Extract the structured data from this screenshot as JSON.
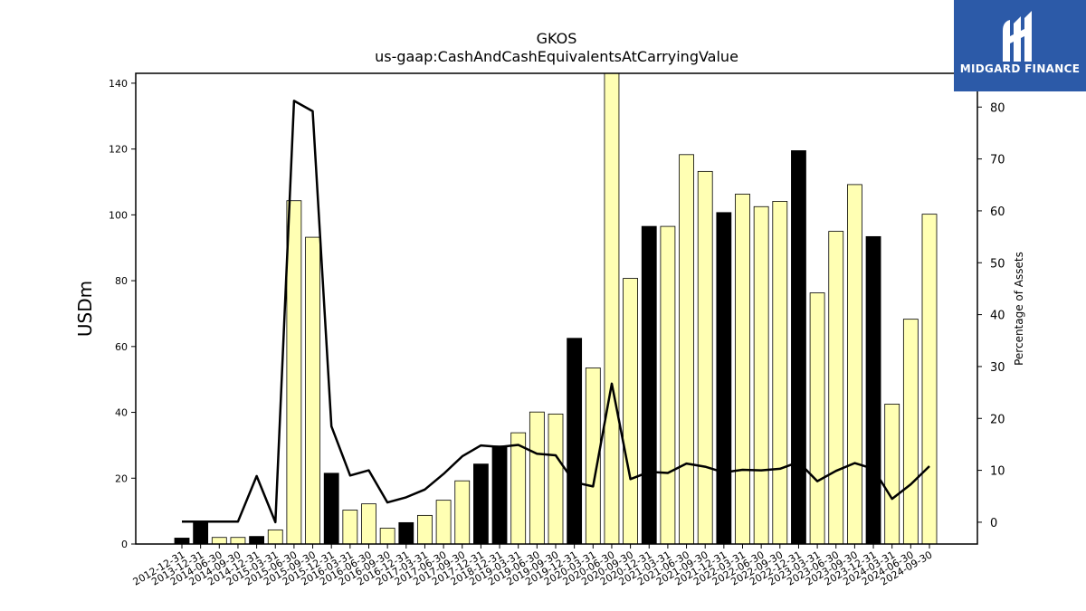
{
  "chart_data": {
    "type": "bar",
    "title": "GKOS",
    "subtitle": "us-gaap:CashAndCashEquivalentsAtCarryingValue",
    "ylabel": "USDm",
    "y2label": "Percentage of Assets",
    "ylim": [
      0,
      143
    ],
    "y2lim": [
      -4.2,
      86.5
    ],
    "yticks": [
      0,
      20,
      40,
      60,
      80,
      100,
      120,
      140
    ],
    "y2ticks": [
      0,
      10,
      20,
      30,
      40,
      50,
      60,
      70,
      80
    ],
    "categories": [
      "2012-12-31",
      "2013-12-31",
      "2014-06-30",
      "2014-09-30",
      "2014-12-31",
      "2015-03-31",
      "2015-06-30",
      "2015-09-30",
      "2015-12-31",
      "2016-03-31",
      "2016-06-30",
      "2016-09-30",
      "2016-12-31",
      "2017-03-31",
      "2017-06-30",
      "2017-09-30",
      "2017-12-31",
      "2018-12-31",
      "2019-03-31",
      "2019-06-30",
      "2019-09-30",
      "2019-12-31",
      "2020-03-31",
      "2020-06-30",
      "2020-09-30",
      "2020-12-31",
      "2021-03-31",
      "2021-06-30",
      "2021-09-30",
      "2021-12-31",
      "2022-03-31",
      "2022-06-30",
      "2022-09-30",
      "2022-12-31",
      "2023-03-31",
      "2023-06-30",
      "2023-09-30",
      "2023-12-31",
      "2024-03-31",
      "2024-06-30",
      "2024-09-30"
    ],
    "series": [
      {
        "name": "",
        "type": "bar",
        "values": [
          1.8,
          6.5,
          2.0,
          2.0,
          2.3,
          4.3,
          104.3,
          93.2,
          21.5,
          10.3,
          12.2,
          4.8,
          6.5,
          8.7,
          13.3,
          19.2,
          24.3,
          29.8,
          33.8,
          40.1,
          39.5,
          62.5,
          53.5,
          143.5,
          80.7,
          96.5,
          96.5,
          118.3,
          113.2,
          100.7,
          106.3,
          102.5,
          104.1,
          119.5,
          76.3,
          95.0,
          109.2,
          93.4,
          42.5,
          68.3,
          100.2
        ],
        "highlight": [
          true,
          true,
          false,
          false,
          true,
          false,
          false,
          false,
          true,
          false,
          false,
          false,
          true,
          false,
          false,
          false,
          true,
          true,
          false,
          false,
          false,
          true,
          false,
          false,
          false,
          true,
          false,
          false,
          false,
          true,
          false,
          false,
          false,
          true,
          false,
          false,
          false,
          true,
          false,
          false,
          false
        ]
      },
      {
        "name": "",
        "type": "line",
        "axis": "right",
        "values": [
          0.1,
          0.1,
          0.1,
          0.1,
          8.9,
          0.0,
          81.2,
          79.2,
          18.5,
          9.0,
          10.0,
          3.8,
          4.8,
          6.3,
          9.3,
          12.7,
          14.8,
          14.5,
          14.9,
          13.2,
          12.9,
          7.7,
          6.9,
          26.7,
          8.3,
          9.7,
          9.5,
          11.3,
          10.7,
          9.6,
          10.1,
          10.0,
          10.3,
          11.6,
          7.9,
          9.9,
          11.4,
          10.3,
          4.5,
          7.3,
          10.8
        ]
      }
    ],
    "colors": {
      "bar_highlight": "#000000",
      "bar_default": "#ffffb3",
      "bar_edge": "#000000",
      "line": "#000000"
    },
    "grid": false
  },
  "logo": {
    "text": "MIDGARD FINANCE",
    "background": "#2c5aa8"
  }
}
